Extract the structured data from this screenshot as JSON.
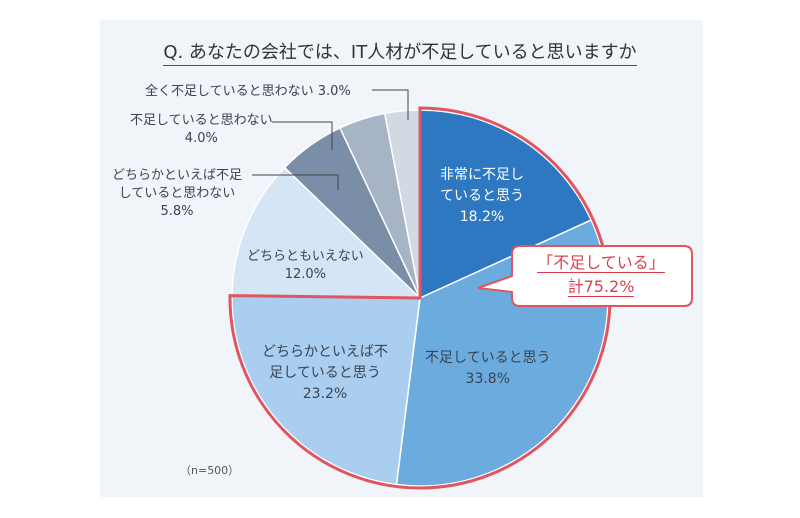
{
  "chart_data": {
    "type": "pie",
    "title": "Q. あなたの会社では、IT人材が不足していると思いますか",
    "note": "（n=500）",
    "slices": [
      {
        "label": "非常に不足していると思う",
        "value": 18.2,
        "color": "#2e78c2"
      },
      {
        "label": "不足していると思う",
        "value": 33.8,
        "color": "#6cabde"
      },
      {
        "label": "どちらかといえば不足していると思う",
        "value": 23.2,
        "color": "#a9ceef"
      },
      {
        "label": "どちらともいえない",
        "value": 12.0,
        "color": "#d4e5f5"
      },
      {
        "label": "どちらかといえば不足していると思わない",
        "value": 5.8,
        "color": "#7a8ea7"
      },
      {
        "label": "不足していると思わない",
        "value": 4.0,
        "color": "#a7b4c6"
      },
      {
        "label": "全く不足していると思わない",
        "value": 3.0,
        "color": "#d1d9e3"
      }
    ],
    "label_text": {
      "s0": [
        "非常に不足し",
        "ていると思う",
        "18.2%"
      ],
      "s1": [
        "不足していると思う",
        "33.8%"
      ],
      "s2": [
        "どちらかといえば不",
        "足していると思う",
        "23.2%"
      ],
      "s3": [
        "どちらともいえない",
        "12.0%"
      ],
      "s4": [
        "どちらかといえば不足",
        "していると思わない",
        "5.8%"
      ],
      "s5": [
        "不足していると思わない",
        "4.0%"
      ],
      "s6": "全く不足していると思わない 3.0%"
    },
    "callout": {
      "line1": "「不足している」",
      "line2": "計75.2%",
      "color": "#e05560"
    }
  }
}
